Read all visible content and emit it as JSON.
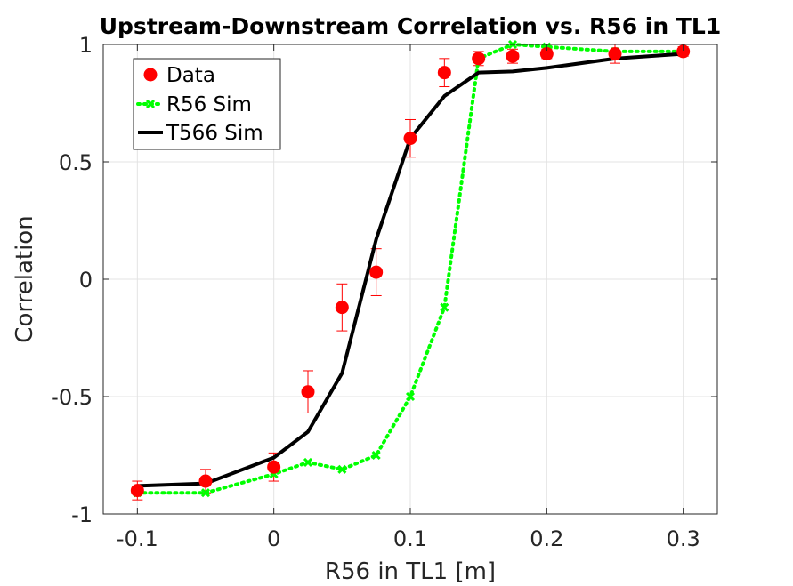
{
  "chart_data": {
    "type": "line",
    "title": "Upstream-Downstream Correlation vs. R56 in TL1",
    "xlabel": "R56 in TL1 [m]",
    "ylabel": "Correlation",
    "xlim": [
      -0.125,
      0.325
    ],
    "ylim": [
      -1,
      1
    ],
    "xticks": [
      -0.1,
      0,
      0.1,
      0.2,
      0.3
    ],
    "xtick_labels": [
      "-0.1",
      "0",
      "0.1",
      "0.2",
      "0.3"
    ],
    "yticks": [
      -1,
      -0.5,
      0,
      0.5,
      1
    ],
    "ytick_labels": [
      "-1",
      "-0.5",
      "0",
      "0.5",
      "1"
    ],
    "grid": true,
    "legend_position": "top-left",
    "series": [
      {
        "name": "Data",
        "style": "markers-errorbars",
        "color": "#ff0000",
        "x": [
          -0.1,
          -0.05,
          0,
          0.025,
          0.05,
          0.075,
          0.1,
          0.125,
          0.15,
          0.175,
          0.2,
          0.25,
          0.3
        ],
        "y": [
          -0.9,
          -0.86,
          -0.8,
          -0.48,
          -0.12,
          0.03,
          0.6,
          0.88,
          0.94,
          0.95,
          0.96,
          0.96,
          0.97
        ],
        "err": [
          0.04,
          0.05,
          0.06,
          0.09,
          0.1,
          0.1,
          0.08,
          0.06,
          0.03,
          0.03,
          0.02,
          0.04,
          0.02
        ]
      },
      {
        "name": "R56 Sim",
        "style": "dotted-x",
        "color": "#00ff00",
        "x": [
          -0.1,
          -0.05,
          0,
          0.025,
          0.05,
          0.075,
          0.1,
          0.125,
          0.15,
          0.175,
          0.2,
          0.25,
          0.3
        ],
        "y": [
          -0.91,
          -0.91,
          -0.83,
          -0.78,
          -0.81,
          -0.75,
          -0.5,
          -0.12,
          0.94,
          1.0,
          0.99,
          0.97,
          0.97
        ]
      },
      {
        "name": "T566 Sim",
        "style": "solid",
        "color": "#000000",
        "x": [
          -0.1,
          -0.05,
          0,
          0.025,
          0.05,
          0.075,
          0.1,
          0.125,
          0.15,
          0.175,
          0.2,
          0.25,
          0.3
        ],
        "y": [
          -0.88,
          -0.87,
          -0.76,
          -0.65,
          -0.4,
          0.17,
          0.6,
          0.78,
          0.88,
          0.885,
          0.9,
          0.94,
          0.96
        ]
      }
    ]
  }
}
